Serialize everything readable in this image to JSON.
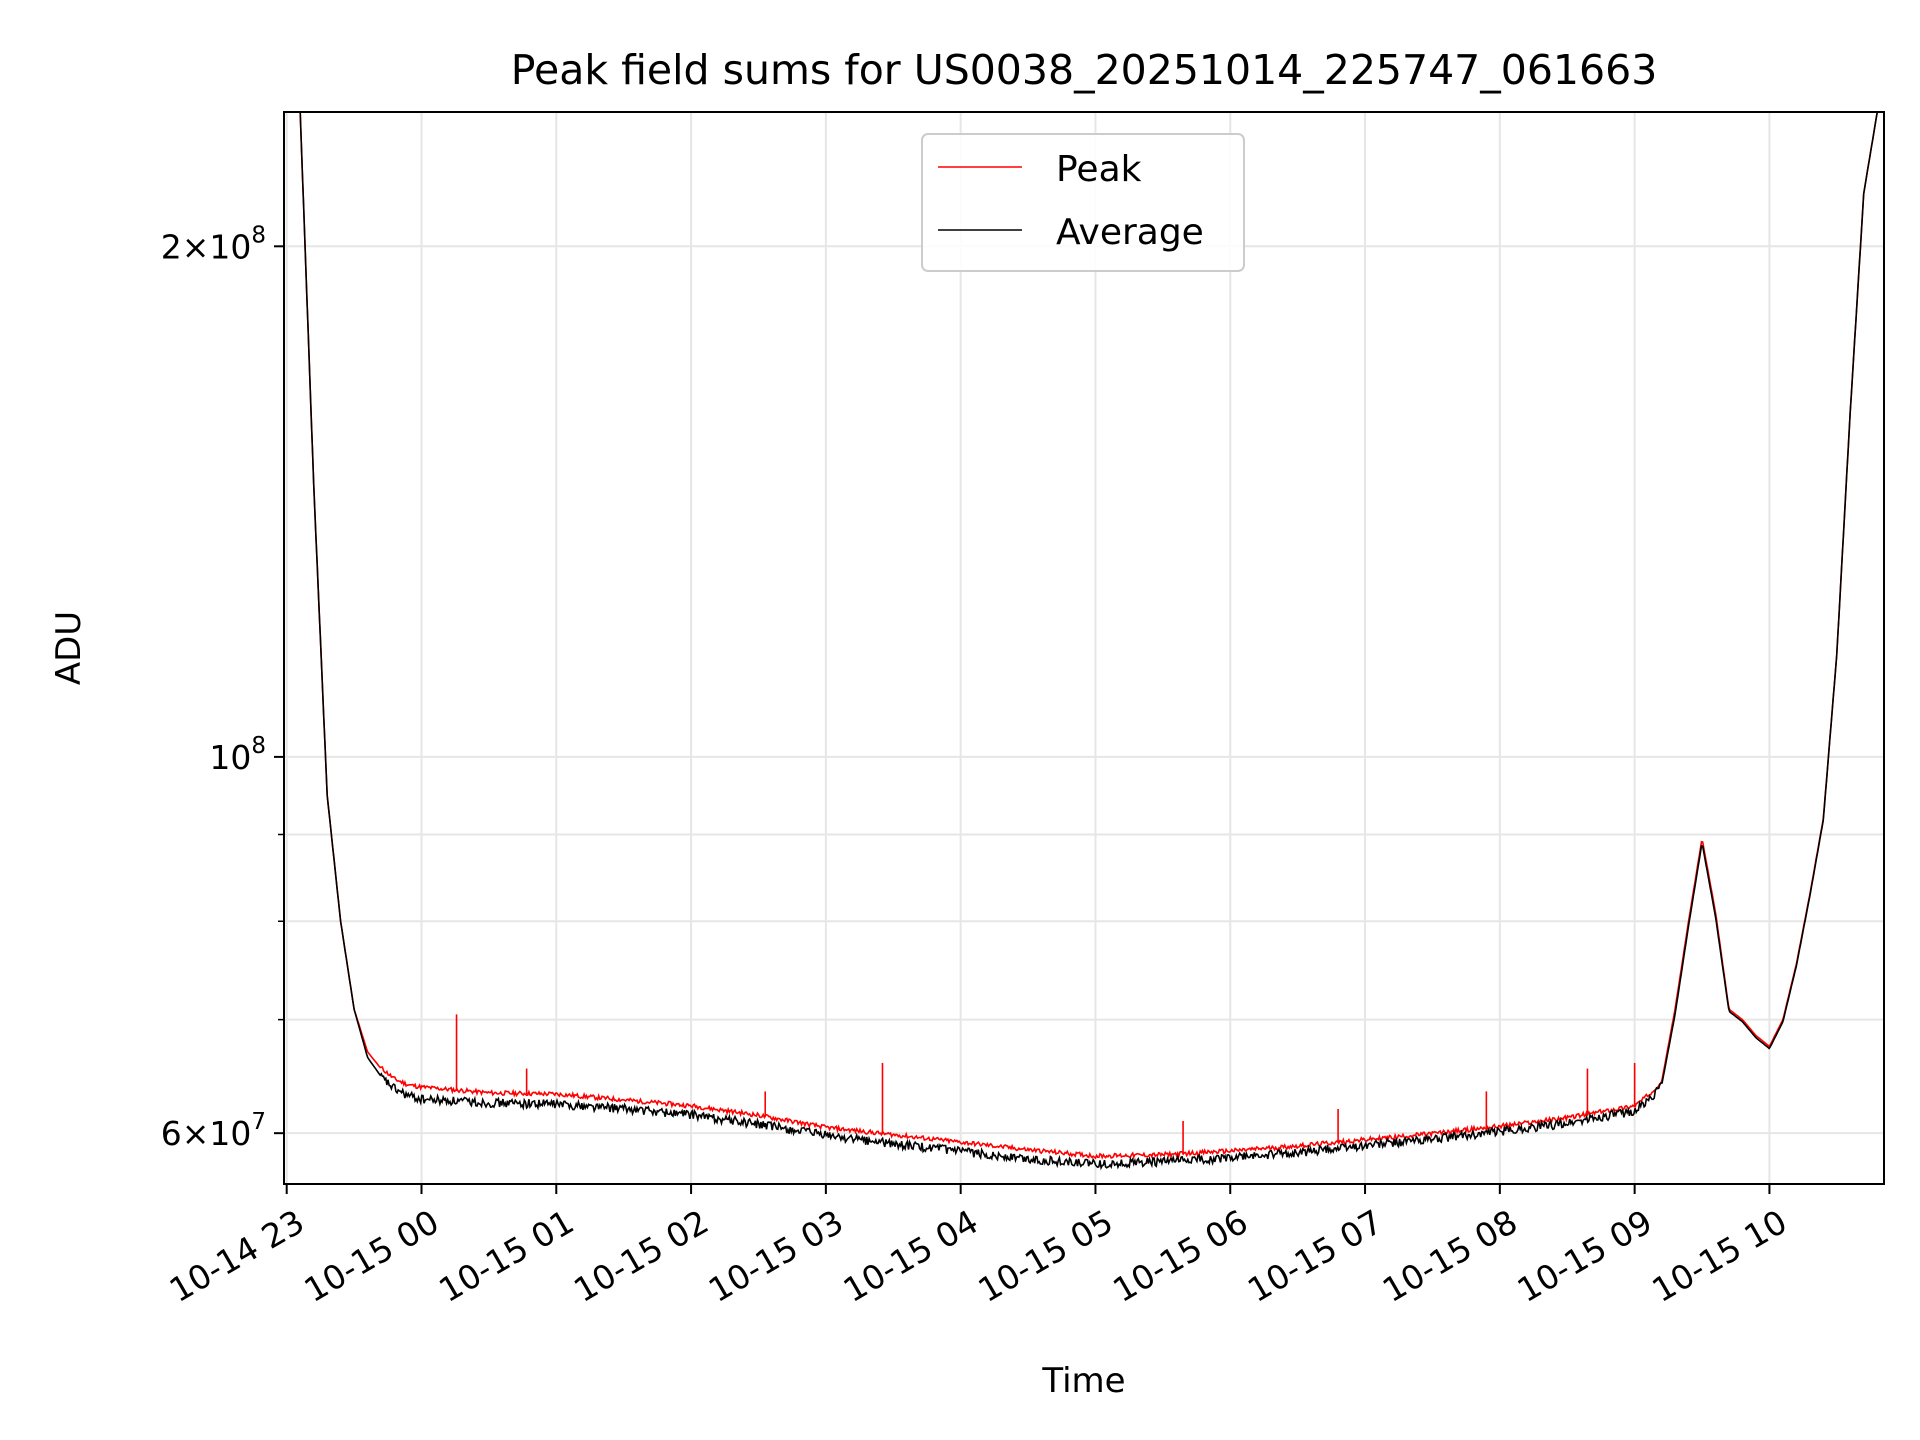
{
  "chart_data": {
    "type": "line",
    "title": "Peak field sums for US0038_20251014_225747_061663",
    "xlabel": "Time",
    "ylabel": "ADU",
    "yscale": "log",
    "ylim": [
      56000000,
      240000000
    ],
    "xlim_hours": [
      -1.02,
      10.85
    ],
    "grid": true,
    "legend_position": "upper center",
    "x_tick_labels": [
      "10-14 23",
      "10-15 00",
      "10-15 01",
      "10-15 02",
      "10-15 03",
      "10-15 04",
      "10-15 05",
      "10-15 06",
      "10-15 07",
      "10-15 08",
      "10-15 09",
      "10-15 10"
    ],
    "x_tick_hours": [
      -1,
      0,
      1,
      2,
      3,
      4,
      5,
      6,
      7,
      8,
      9,
      10
    ],
    "y_major_ticks": [
      {
        "value": 60000000,
        "base": "6",
        "exp": "7"
      },
      {
        "value": 100000000,
        "base": "",
        "exp": "8"
      },
      {
        "value": 200000000,
        "base": "2",
        "exp": "8"
      }
    ],
    "y_minor_ticks": [
      70000000,
      80000000,
      90000000
    ],
    "series": [
      {
        "name": "Peak",
        "color": "#ff0000",
        "x_hours": [
          -0.9,
          -0.8,
          -0.7,
          -0.6,
          -0.5,
          -0.4,
          -0.3,
          -0.2,
          -0.1,
          0.0,
          0.5,
          1.0,
          1.5,
          2.0,
          2.5,
          3.0,
          3.5,
          4.0,
          4.5,
          5.0,
          5.5,
          6.0,
          6.5,
          7.0,
          7.5,
          8.0,
          8.5,
          9.0,
          9.1,
          9.2,
          9.3,
          9.4,
          9.5,
          9.6,
          9.7,
          9.8,
          9.9,
          10.0,
          10.1,
          10.2,
          10.3,
          10.4,
          10.5,
          10.6,
          10.7,
          10.8
        ],
        "values": [
          240000000,
          145000000,
          95000000,
          80000000,
          71000000,
          67000000,
          65500000,
          64500000,
          64000000,
          63800000,
          63300000,
          63200000,
          62700000,
          62200000,
          61400000,
          60400000,
          59800000,
          59200000,
          58600000,
          58100000,
          58200000,
          58500000,
          58900000,
          59400000,
          59900000,
          60500000,
          61200000,
          62200000,
          63100000,
          64300000,
          71000000,
          80000000,
          89500000,
          81000000,
          71000000,
          70000000,
          68500000,
          67500000,
          70000000,
          75500000,
          83000000,
          92000000,
          115000000,
          160000000,
          215000000,
          240000000
        ],
        "spikes": [
          [
            0.26,
            70500000
          ],
          [
            0.78,
            65500000
          ],
          [
            2.55,
            63500000
          ],
          [
            3.42,
            66000000
          ],
          [
            5.65,
            61000000
          ],
          [
            6.8,
            62000000
          ],
          [
            7.9,
            63500000
          ],
          [
            8.65,
            65500000
          ],
          [
            9.0,
            66000000
          ]
        ]
      },
      {
        "name": "Average",
        "color": "#000000",
        "x_hours": [
          -0.9,
          -0.8,
          -0.7,
          -0.6,
          -0.5,
          -0.4,
          -0.3,
          -0.2,
          -0.1,
          0.0,
          0.5,
          1.0,
          1.5,
          2.0,
          2.5,
          3.0,
          3.5,
          4.0,
          4.5,
          5.0,
          5.5,
          6.0,
          6.5,
          7.0,
          7.5,
          8.0,
          8.5,
          9.0,
          9.1,
          9.2,
          9.3,
          9.4,
          9.5,
          9.6,
          9.7,
          9.8,
          9.9,
          10.0,
          10.1,
          10.2,
          10.3,
          10.4,
          10.5,
          10.6,
          10.7,
          10.8
        ],
        "values": [
          240000000,
          145000000,
          95000000,
          80000000,
          71000000,
          66500000,
          64800000,
          63800000,
          63200000,
          62900000,
          62600000,
          62500000,
          62100000,
          61600000,
          60800000,
          59900000,
          59200000,
          58600000,
          58000000,
          57600000,
          57800000,
          58100000,
          58500000,
          59100000,
          59600000,
          60200000,
          60900000,
          61900000,
          62800000,
          64000000,
          70500000,
          79500000,
          89000000,
          80500000,
          70800000,
          69800000,
          68300000,
          67300000,
          69800000,
          75300000,
          82800000,
          91800000,
          115000000,
          160000000,
          215000000,
          240000000
        ]
      }
    ]
  }
}
